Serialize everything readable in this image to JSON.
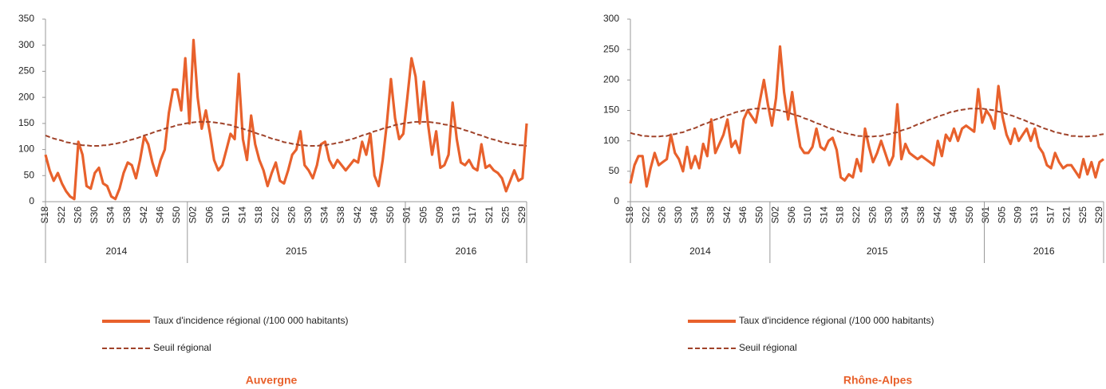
{
  "chart_data": [
    {
      "type": "line",
      "title": "Auvergne",
      "categories": [
        "S18",
        null,
        null,
        null,
        "S22",
        null,
        null,
        null,
        "S26",
        null,
        null,
        null,
        "S30",
        null,
        null,
        null,
        "S34",
        null,
        null,
        null,
        "S38",
        null,
        null,
        null,
        "S42",
        null,
        null,
        null,
        "S46",
        null,
        null,
        null,
        "S50",
        null,
        null,
        null,
        "S02",
        null,
        null,
        null,
        "S06",
        null,
        null,
        null,
        "S10",
        null,
        null,
        null,
        "S14",
        null,
        null,
        null,
        "S18",
        null,
        null,
        null,
        "S22",
        null,
        null,
        null,
        "S26",
        null,
        null,
        null,
        "S30",
        null,
        null,
        null,
        "S34",
        null,
        null,
        null,
        "S38",
        null,
        null,
        null,
        "S42",
        null,
        null,
        null,
        "S46",
        null,
        null,
        null,
        "S50",
        null,
        null,
        null,
        "S01",
        null,
        null,
        null,
        "S05",
        null,
        null,
        null,
        "S09",
        null,
        null,
        null,
        "S13",
        null,
        null,
        null,
        "S17",
        null,
        null,
        null,
        "S21",
        null,
        null,
        null,
        "S25",
        null,
        null,
        null,
        "S29",
        null
      ],
      "groups": [
        {
          "label": "2014",
          "count": 35
        },
        {
          "label": "2015",
          "count": 53
        },
        {
          "label": "2016",
          "count": 30
        }
      ],
      "series": [
        {
          "name": "Taux d'incidence régional (/100 000 habitants)",
          "color": "#e8612c",
          "style": "solid",
          "values": [
            90,
            60,
            40,
            55,
            35,
            20,
            10,
            5,
            115,
            90,
            30,
            25,
            55,
            65,
            35,
            30,
            10,
            5,
            25,
            55,
            75,
            70,
            45,
            80,
            125,
            110,
            75,
            50,
            80,
            100,
            170,
            215,
            215,
            175,
            275,
            150,
            310,
            200,
            140,
            175,
            130,
            80,
            60,
            70,
            100,
            130,
            120,
            245,
            120,
            80,
            165,
            110,
            80,
            60,
            30,
            55,
            75,
            40,
            35,
            60,
            90,
            100,
            135,
            70,
            60,
            45,
            70,
            110,
            115,
            80,
            65,
            80,
            70,
            60,
            70,
            80,
            75,
            115,
            90,
            130,
            50,
            30,
            80,
            150,
            235,
            160,
            120,
            130,
            200,
            275,
            240,
            150,
            230,
            150,
            90,
            135,
            65,
            70,
            90,
            190,
            120,
            75,
            70,
            80,
            65,
            60,
            110,
            65,
            70,
            60,
            55,
            45,
            20,
            40,
            60,
            40,
            45,
            150
          ]
        },
        {
          "name": "Seuil régional",
          "color": "#a0432a",
          "style": "dashed",
          "values": [
            127,
            124,
            121,
            119,
            117,
            114,
            113,
            111,
            110,
            108,
            108,
            107,
            107,
            107,
            108,
            108,
            110,
            111,
            113,
            114,
            117,
            119,
            121,
            124,
            127,
            129,
            132,
            135,
            137,
            140,
            142,
            144,
            147,
            148,
            150,
            151,
            152,
            153,
            153,
            153,
            153,
            152,
            151,
            150,
            148,
            147,
            144,
            142,
            140,
            137,
            135,
            132,
            129,
            127,
            124,
            121,
            119,
            117,
            114,
            113,
            111,
            110,
            108,
            108,
            107,
            107,
            107,
            108,
            108,
            110,
            111,
            113,
            114,
            117,
            119,
            121,
            124,
            127,
            129,
            132,
            135,
            137,
            140,
            142,
            144,
            147,
            148,
            150,
            151,
            152,
            153,
            153,
            153,
            153,
            152,
            151,
            150,
            148,
            147,
            144,
            142,
            140,
            137,
            135,
            132,
            129,
            127,
            124,
            121,
            119,
            117,
            114,
            113,
            111,
            110,
            108,
            108,
            107
          ]
        }
      ],
      "ylim": [
        0,
        350
      ],
      "yticks": [
        0,
        50,
        100,
        150,
        200,
        250,
        300,
        350
      ]
    },
    {
      "type": "line",
      "title": "Rhône-Alpes",
      "categories": [
        "S18",
        null,
        null,
        null,
        "S22",
        null,
        null,
        null,
        "S26",
        null,
        null,
        null,
        "S30",
        null,
        null,
        null,
        "S34",
        null,
        null,
        null,
        "S38",
        null,
        null,
        null,
        "S42",
        null,
        null,
        null,
        "S46",
        null,
        null,
        null,
        "S50",
        null,
        null,
        null,
        "S02",
        null,
        null,
        null,
        "S06",
        null,
        null,
        null,
        "S10",
        null,
        null,
        null,
        "S14",
        null,
        null,
        null,
        "S18",
        null,
        null,
        null,
        "S22",
        null,
        null,
        null,
        "S26",
        null,
        null,
        null,
        "S30",
        null,
        null,
        null,
        "S34",
        null,
        null,
        null,
        "S38",
        null,
        null,
        null,
        "S42",
        null,
        null,
        null,
        "S46",
        null,
        null,
        null,
        "S50",
        null,
        null,
        null,
        "S01",
        null,
        null,
        null,
        "S05",
        null,
        null,
        null,
        "S09",
        null,
        null,
        null,
        "S13",
        null,
        null,
        null,
        "S17",
        null,
        null,
        null,
        "S21",
        null,
        null,
        null,
        "S25",
        null,
        null,
        null,
        "S29",
        null
      ],
      "groups": [
        {
          "label": "2014",
          "count": 35
        },
        {
          "label": "2015",
          "count": 53
        },
        {
          "label": "2016",
          "count": 30
        }
      ],
      "series": [
        {
          "name": "Taux d'incidence régional (/100 000 habitants)",
          "color": "#e8612c",
          "style": "solid",
          "values": [
            30,
            60,
            75,
            75,
            25,
            55,
            80,
            60,
            65,
            70,
            110,
            80,
            70,
            50,
            90,
            55,
            75,
            55,
            95,
            75,
            135,
            80,
            95,
            110,
            135,
            90,
            100,
            80,
            135,
            150,
            140,
            130,
            165,
            200,
            160,
            125,
            170,
            255,
            180,
            135,
            180,
            130,
            90,
            80,
            80,
            90,
            120,
            90,
            85,
            100,
            105,
            85,
            40,
            35,
            45,
            40,
            70,
            50,
            120,
            90,
            65,
            80,
            100,
            80,
            60,
            75,
            160,
            70,
            95,
            80,
            75,
            70,
            75,
            70,
            65,
            60,
            100,
            75,
            110,
            100,
            120,
            100,
            120,
            125,
            120,
            115,
            185,
            130,
            150,
            140,
            120,
            190,
            140,
            110,
            95,
            120,
            100,
            110,
            120,
            100,
            120,
            90,
            80,
            60,
            55,
            80,
            65,
            55,
            60,
            60,
            50,
            40,
            70,
            45,
            65,
            40,
            65,
            70
          ]
        },
        {
          "name": "Seuil régional",
          "color": "#a0432a",
          "style": "dashed",
          "values": [
            113,
            111,
            110,
            108,
            108,
            107,
            107,
            107,
            108,
            108,
            110,
            111,
            113,
            114,
            117,
            119,
            121,
            124,
            127,
            129,
            132,
            135,
            137,
            140,
            142,
            144,
            147,
            148,
            150,
            151,
            152,
            153,
            153,
            153,
            153,
            152,
            151,
            150,
            148,
            147,
            144,
            142,
            140,
            137,
            135,
            132,
            129,
            127,
            124,
            121,
            119,
            117,
            114,
            113,
            111,
            110,
            108,
            108,
            107,
            107,
            107,
            108,
            108,
            110,
            111,
            113,
            114,
            117,
            119,
            121,
            124,
            127,
            129,
            132,
            135,
            137,
            140,
            142,
            144,
            147,
            148,
            150,
            151,
            152,
            153,
            153,
            153,
            153,
            152,
            151,
            150,
            148,
            147,
            144,
            142,
            140,
            137,
            135,
            132,
            129,
            127,
            124,
            121,
            119,
            117,
            114,
            113,
            111,
            110,
            108,
            108,
            107,
            107,
            107,
            108,
            108,
            110,
            111
          ]
        }
      ],
      "ylim": [
        0,
        300
      ],
      "yticks": [
        0,
        50,
        100,
        150,
        200,
        250,
        300
      ]
    }
  ]
}
